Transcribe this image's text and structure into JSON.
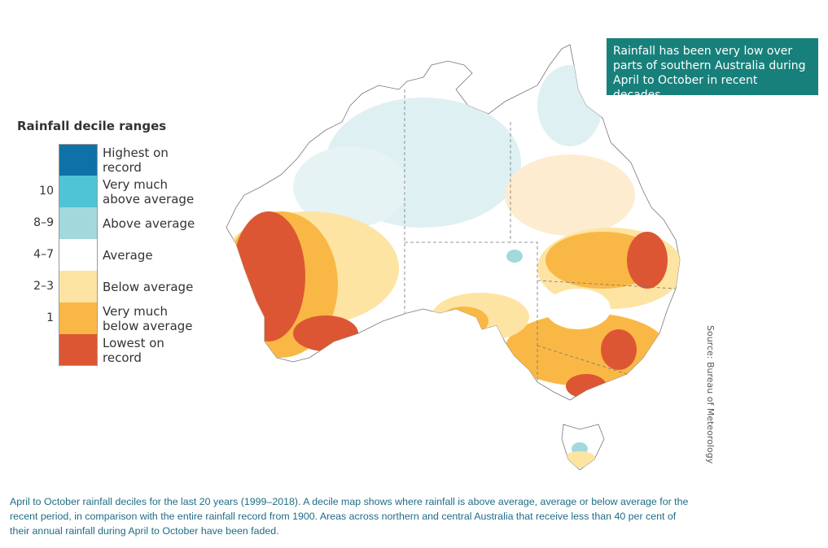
{
  "legend": {
    "title": "Rainfall decile ranges",
    "items": [
      {
        "label": "Highest on record",
        "color": "#0e72a8"
      },
      {
        "label": "Very much above average",
        "decile": "10",
        "color": "#4ec4d6"
      },
      {
        "label": "Above average",
        "decile": "8–9",
        "color": "#a2d9dc"
      },
      {
        "label": "Average",
        "decile": "4–7",
        "color": "#ffffff"
      },
      {
        "label": "Below average",
        "decile": "2–3",
        "color": "#fde4a2"
      },
      {
        "label": "Very much below average",
        "decile": "1",
        "color": "#f9b845"
      },
      {
        "label": "Lowest on record",
        "color": "#dd5633"
      }
    ]
  },
  "callout": "Rainfall has been very low over parts of southern Australia during April to October in recent decades.",
  "source": "Source: Bureau of Meteorology",
  "caption": "April to October rainfall deciles for the last 20 years (1999–2018). A decile map shows where rainfall is above average, average or below average for the recent period, in comparison with the entire rainfall record from 1900. Areas across northern and central Australia that receive less than 40 per cent of their annual rainfall during April to October have been faded."
}
